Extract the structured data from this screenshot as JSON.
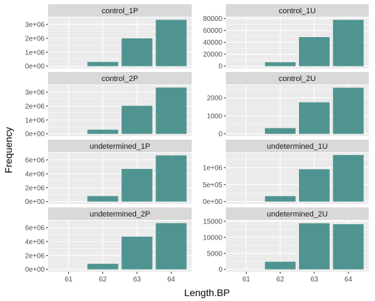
{
  "chart_data": {
    "type": "bar",
    "xlabel": "Length.BP",
    "ylabel": "Frequency",
    "categories": [
      "61",
      "62",
      "63",
      "64"
    ],
    "bar_color": "#4f9490",
    "panels": [
      {
        "title": "control_1P",
        "values": [
          0,
          300000,
          2000000,
          3330000
        ],
        "ylim": [
          0,
          3500000
        ],
        "yticks": [
          0,
          1000000,
          2000000,
          3000000
        ],
        "yticklabels": [
          "0e+00",
          "1e+06",
          "2e+06",
          "3e+06"
        ]
      },
      {
        "title": "control_1U",
        "values": [
          0,
          6500,
          49000,
          78000
        ],
        "ylim": [
          0,
          82000
        ],
        "yticks": [
          0,
          20000,
          40000,
          60000,
          80000
        ],
        "yticklabels": [
          "0",
          "20000",
          "40000",
          "60000",
          "80000"
        ]
      },
      {
        "title": "control_2P",
        "values": [
          0,
          300000,
          2020000,
          3330000
        ],
        "ylim": [
          0,
          3500000
        ],
        "yticks": [
          0,
          1000000,
          2000000,
          3000000
        ],
        "yticklabels": [
          "0e+00",
          "1e+06",
          "2e+06",
          "3e+06"
        ]
      },
      {
        "title": "control_2U",
        "values": [
          0,
          320,
          1750,
          2560
        ],
        "ylim": [
          0,
          2700
        ],
        "yticks": [
          0,
          1000,
          2000
        ],
        "yticklabels": [
          "0",
          "1000",
          "2000"
        ]
      },
      {
        "title": "undetermined_1P",
        "values": [
          0,
          800000,
          4700000,
          6650000
        ],
        "ylim": [
          0,
          7000000
        ],
        "yticks": [
          0,
          2000000,
          4000000,
          6000000
        ],
        "yticklabels": [
          "0e+00",
          "2e+06",
          "4e+06",
          "6e+06"
        ]
      },
      {
        "title": "undetermined_1U",
        "values": [
          0,
          160000,
          950000,
          1370000
        ],
        "ylim": [
          0,
          1430000
        ],
        "yticks": [
          0,
          500000,
          1000000
        ],
        "yticklabels": [
          "0e+00",
          "5e+05",
          "1e+06"
        ]
      },
      {
        "title": "undetermined_2P",
        "values": [
          0,
          800000,
          4700000,
          6650000
        ],
        "ylim": [
          0,
          7000000
        ],
        "yticks": [
          0,
          2000000,
          4000000,
          6000000
        ],
        "yticklabels": [
          "0e+00",
          "2e+06",
          "4e+06",
          "6e+06"
        ]
      },
      {
        "title": "undetermined_2U",
        "values": [
          0,
          2400,
          14400,
          14100
        ],
        "ylim": [
          0,
          15200
        ],
        "yticks": [
          0,
          5000,
          10000,
          15000
        ],
        "yticklabels": [
          "0",
          "5000",
          "10000",
          "15000"
        ]
      }
    ]
  }
}
